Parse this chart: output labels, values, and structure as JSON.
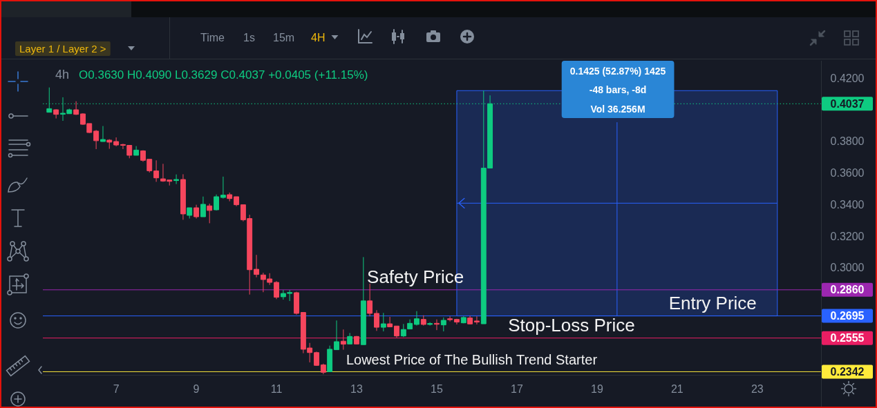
{
  "chart_data": {
    "type": "candlestick",
    "subtitle": "4h",
    "x": [
      5.33,
      5.5,
      5.67,
      5.83,
      6,
      6.17,
      6.33,
      6.5,
      6.67,
      6.83,
      7,
      7.17,
      7.33,
      7.5,
      7.67,
      7.83,
      8,
      8.17,
      8.33,
      8.5,
      8.67,
      8.83,
      9,
      9.17,
      9.33,
      9.5,
      9.67,
      9.83,
      10,
      10.17,
      10.33,
      10.5,
      10.67,
      10.83,
      11,
      11.17,
      11.33,
      11.5,
      11.67,
      11.83,
      12,
      12.17,
      12.33,
      12.5,
      12.67,
      12.83,
      13,
      13.17,
      13.33,
      13.5,
      13.67,
      13.83,
      14,
      14.17,
      14.33,
      14.5,
      14.67,
      14.83,
      15,
      15.17,
      15.33,
      15.5,
      15.67,
      15.83,
      16,
      16.17,
      16.33
    ],
    "ohlc": [
      [
        0.3983,
        0.414,
        0.3983,
        0.4006
      ],
      [
        0.3999,
        0.4002,
        0.3944,
        0.397
      ],
      [
        0.3971,
        0.4078,
        0.3929,
        0.3977
      ],
      [
        0.3974,
        0.4006,
        0.3974,
        0.3999
      ],
      [
        0.3999,
        0.4053,
        0.3966,
        0.397
      ],
      [
        0.3973,
        0.3977,
        0.3903,
        0.3907
      ],
      [
        0.3912,
        0.3912,
        0.3852,
        0.3855
      ],
      [
        0.3864,
        0.3871,
        0.375,
        0.3803
      ],
      [
        0.3798,
        0.3896,
        0.3797,
        0.3811
      ],
      [
        0.3807,
        0.3813,
        0.3752,
        0.3794
      ],
      [
        0.3798,
        0.3824,
        0.3768,
        0.3776
      ],
      [
        0.3779,
        0.3784,
        0.375,
        0.3774
      ],
      [
        0.3774,
        0.3774,
        0.3692,
        0.3711
      ],
      [
        0.3711,
        0.3769,
        0.3711,
        0.3744
      ],
      [
        0.3739,
        0.3743,
        0.367,
        0.3679
      ],
      [
        0.3686,
        0.3686,
        0.3602,
        0.3613
      ],
      [
        0.3612,
        0.3679,
        0.3543,
        0.3568
      ],
      [
        0.3562,
        0.3657,
        0.3543,
        0.3548
      ],
      [
        0.3555,
        0.3555,
        0.352,
        0.3546
      ],
      [
        0.3551,
        0.359,
        0.3529,
        0.3558
      ],
      [
        0.3558,
        0.3591,
        0.3303,
        0.334
      ],
      [
        0.3331,
        0.3379,
        0.3311,
        0.3379
      ],
      [
        0.3379,
        0.3398,
        0.3311,
        0.3322
      ],
      [
        0.3322,
        0.345,
        0.3322,
        0.3401
      ],
      [
        0.3391,
        0.3405,
        0.3281,
        0.3362
      ],
      [
        0.3366,
        0.3463,
        0.3362,
        0.3449
      ],
      [
        0.3444,
        0.3576,
        0.3437,
        0.3459
      ],
      [
        0.3462,
        0.3475,
        0.342,
        0.3437
      ],
      [
        0.3449,
        0.3449,
        0.3389,
        0.3398
      ],
      [
        0.3398,
        0.3398,
        0.3293,
        0.3303
      ],
      [
        0.3311,
        0.3335,
        0.283,
        0.2987
      ],
      [
        0.299,
        0.3081,
        0.2939,
        0.2957
      ],
      [
        0.2954,
        0.2968,
        0.2845,
        0.2925
      ],
      [
        0.2929,
        0.2965,
        0.2891,
        0.2907
      ],
      [
        0.2907,
        0.2915,
        0.2801,
        0.2813
      ],
      [
        0.2816,
        0.2859,
        0.2798,
        0.2837
      ],
      [
        0.2837,
        0.2859,
        0.2789,
        0.2843
      ],
      [
        0.2842,
        0.2848,
        0.2703,
        0.2711
      ],
      [
        0.2717,
        0.2717,
        0.2459,
        0.2484
      ],
      [
        0.2492,
        0.2524,
        0.2401,
        0.2463
      ],
      [
        0.2463,
        0.2469,
        0.2379,
        0.2382
      ],
      [
        0.2385,
        0.2393,
        0.2326,
        0.2338
      ],
      [
        0.2342,
        0.2507,
        0.2342,
        0.2484
      ],
      [
        0.2481,
        0.2666,
        0.2481,
        0.2532
      ],
      [
        0.2535,
        0.2609,
        0.2481,
        0.2516
      ],
      [
        0.2517,
        0.2587,
        0.2517,
        0.2565
      ],
      [
        0.2565,
        0.2568,
        0.2516,
        0.2517
      ],
      [
        0.2513,
        0.3067,
        0.2513,
        0.279
      ],
      [
        0.279,
        0.2899,
        0.2692,
        0.2711
      ],
      [
        0.2711,
        0.2731,
        0.26,
        0.2623
      ],
      [
        0.2623,
        0.2714,
        0.2597,
        0.2645
      ],
      [
        0.2645,
        0.2689,
        0.2624,
        0.2626
      ],
      [
        0.2631,
        0.2631,
        0.2558,
        0.2568
      ],
      [
        0.2568,
        0.2644,
        0.2561,
        0.2609
      ],
      [
        0.2612,
        0.2673,
        0.2612,
        0.2648
      ],
      [
        0.2641,
        0.2725,
        0.2634,
        0.2677
      ],
      [
        0.2673,
        0.2699,
        0.2634,
        0.2641
      ],
      [
        0.2641,
        0.2655,
        0.2634,
        0.2647
      ],
      [
        0.2648,
        0.2673,
        0.2605,
        0.2642
      ],
      [
        0.2638,
        0.2685,
        0.2597,
        0.2667
      ],
      [
        0.2677,
        0.2692,
        0.266,
        0.2671
      ],
      [
        0.2673,
        0.2677,
        0.2641,
        0.2656
      ],
      [
        0.2651,
        0.2692,
        0.2648,
        0.2685
      ],
      [
        0.2682,
        0.2696,
        0.2641,
        0.2644
      ],
      [
        0.2663,
        0.2692,
        0.2641,
        0.2656
      ],
      [
        0.2645,
        0.412,
        0.2645,
        0.363
      ],
      [
        0.363,
        0.409,
        0.3629,
        0.4037
      ]
    ],
    "colors": [
      "#0ecb81",
      "#f6465d",
      "#0ecb81",
      "#0ecb81",
      "#f6465d",
      "#f6465d",
      "#f6465d",
      "#f6465d",
      "#0ecb81",
      "#f6465d",
      "#f6465d",
      "#f6465d",
      "#f6465d",
      "#0ecb81",
      "#f6465d",
      "#f6465d",
      "#f6465d",
      "#f6465d",
      "#f6465d",
      "#0ecb81",
      "#f6465d",
      "#0ecb81",
      "#f6465d",
      "#0ecb81",
      "#f6465d",
      "#0ecb81",
      "#0ecb81",
      "#f6465d",
      "#f6465d",
      "#f6465d",
      "#f6465d",
      "#f6465d",
      "#f6465d",
      "#f6465d",
      "#f6465d",
      "#0ecb81",
      "#0ecb81",
      "#f6465d",
      "#f6465d",
      "#f6465d",
      "#f6465d",
      "#f6465d",
      "#0ecb81",
      "#0ecb81",
      "#f6465d",
      "#0ecb81",
      "#f6465d",
      "#0ecb81",
      "#f6465d",
      "#f6465d",
      "#0ecb81",
      "#f6465d",
      "#f6465d",
      "#0ecb81",
      "#0ecb81",
      "#0ecb81",
      "#f6465d",
      "#0ecb81",
      "#f6465d",
      "#0ecb81",
      "#f6465d",
      "#f6465d",
      "#0ecb81",
      "#f6465d",
      "#f6465d",
      "#0ecb81",
      "#0ecb81"
    ],
    "series": [
      {
        "type": "line",
        "x": [
          15.5,
          23.5
        ],
        "values": [
          0.3408,
          0.3408
        ],
        "lower": [
          0.2695,
          0.2695
        ],
        "upper": [
          0.412,
          0.412
        ],
        "color": "#2962ff"
      },
      {
        "type": "line",
        "x": [
          19.5,
          19.5
        ],
        "values": [
          0.2695,
          0.392
        ],
        "color": "#2962ff"
      }
    ],
    "xlim": [
      5.17,
      24.59
    ],
    "xticks": [
      7,
      9,
      11,
      13,
      15,
      17,
      19,
      21,
      23
    ],
    "ylim": [
      0.2322,
      0.4309
    ],
    "yticks": [
      {
        "value": 0.42,
        "label": "0.4200"
      },
      {
        "value": 0.38,
        "label": "0.3800"
      },
      {
        "value": 0.36,
        "label": "0.3600"
      },
      {
        "value": 0.34,
        "label": "0.3400"
      },
      {
        "value": 0.32,
        "label": "0.3200"
      },
      {
        "value": 0.3,
        "label": "0.3000"
      }
    ],
    "ref_lines": [
      {
        "axis": "y",
        "value": 0.4037,
        "label": "0.4037",
        "color": "#0ecb81",
        "line_style": "dotted"
      },
      {
        "axis": "y",
        "value": 0.286,
        "label": "0.2860",
        "color": "#9c27b0"
      },
      {
        "axis": "y",
        "value": 0.2695,
        "label": "0.2695",
        "color": "#2962ff"
      },
      {
        "axis": "y",
        "value": 0.2555,
        "label": "0.2555",
        "color": "#e91e63"
      },
      {
        "axis": "y",
        "value": 0.2342,
        "label": "0.2342",
        "color": "#ffeb3b"
      }
    ],
    "annotations": [
      "Layer 1 / Layer 2 >",
      "Time",
      "1s",
      "15m",
      "4H",
      "O0.3630 H0.4090 L0.3629 C0.4037 +0.0405 (+11.15%)",
      "0.1425 (52.87%) 1425",
      "-48 bars, -8d",
      "Vol 36.256M",
      {
        "text": "Safety Price",
        "x": 13.26,
        "y": 0.286
      },
      {
        "text": "Entry Price",
        "x": 20.79,
        "y": 0.2695
      },
      {
        "text": "Stop-Loss Price",
        "x": 16.78,
        "y": 0.2555
      },
      {
        "text": "Lowest Price of The Bullish Trend Starter",
        "x": 12.74,
        "y": 0.2342
      }
    ]
  }
}
